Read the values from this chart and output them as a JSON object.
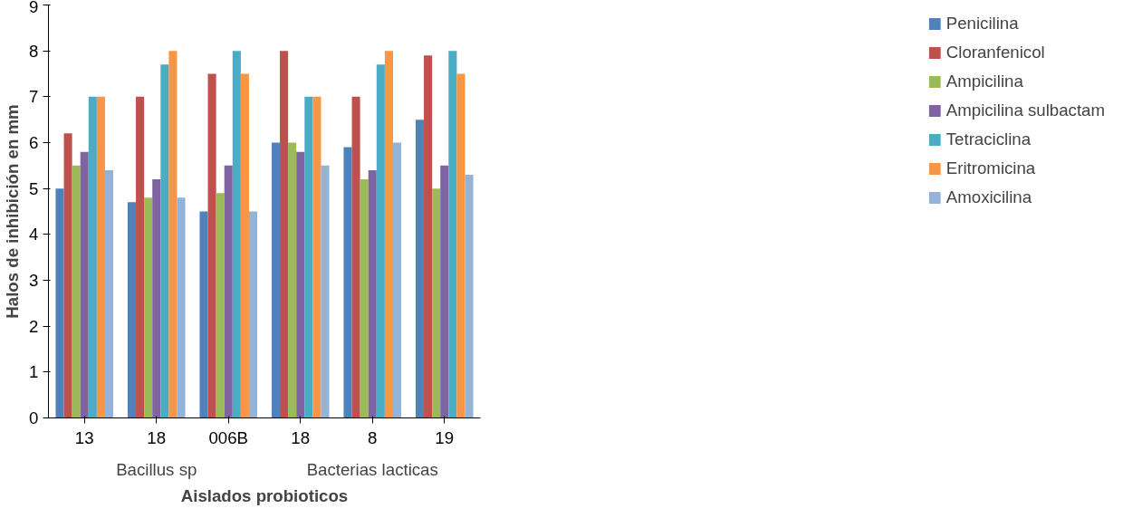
{
  "chart_data": {
    "type": "bar",
    "xlabel": "Aislados probioticos",
    "ylabel": "Halos de inhibición en mm",
    "categories": [
      "13",
      "18",
      "006B",
      "18",
      "8",
      "19"
    ],
    "annotations": [
      "Bacillus sp",
      "Bacterias lacticas"
    ],
    "ylim": [
      0,
      9
    ],
    "yticks": [
      0,
      1,
      2,
      3,
      4,
      5,
      6,
      7,
      8,
      9
    ],
    "grid": false,
    "legend": "right",
    "series": [
      {
        "name": "Penicilina",
        "color": "#4f81bd",
        "values": [
          5.0,
          4.7,
          4.5,
          6.0,
          5.9,
          6.5
        ]
      },
      {
        "name": "Cloranfenicol",
        "color": "#c0504d",
        "values": [
          6.2,
          7.0,
          7.5,
          8.0,
          7.0,
          7.9
        ]
      },
      {
        "name": "Ampicilina",
        "color": "#9bbb59",
        "values": [
          5.5,
          4.8,
          4.9,
          6.0,
          5.2,
          5.0
        ]
      },
      {
        "name": "Ampicilina sulbactam",
        "color": "#8064a2",
        "values": [
          5.8,
          5.2,
          5.5,
          5.8,
          5.4,
          5.5
        ]
      },
      {
        "name": "Tetraciclina",
        "color": "#4bacc6",
        "values": [
          7.0,
          7.7,
          8.0,
          7.0,
          7.7,
          8.0
        ]
      },
      {
        "name": "Eritromicina",
        "color": "#f79646",
        "values": [
          7.0,
          8.0,
          7.5,
          7.0,
          8.0,
          7.5
        ]
      },
      {
        "name": "Amoxicilina",
        "color": "#95b3d7",
        "values": [
          5.4,
          4.8,
          4.5,
          5.5,
          6.0,
          5.3
        ]
      }
    ]
  }
}
